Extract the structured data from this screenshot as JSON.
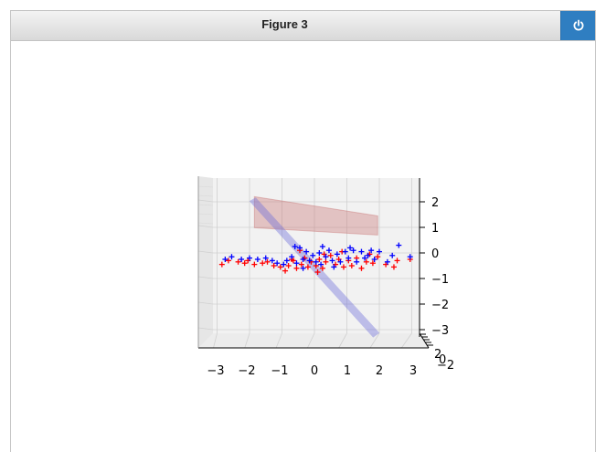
{
  "window": {
    "title": "Figure 3",
    "close_icon": "power-icon",
    "accent_color": "#2f7ec1"
  },
  "chart_data": {
    "type": "scatter",
    "projection": "3d",
    "title": "",
    "xlabel": "",
    "ylabel": "",
    "zlabel": "",
    "xlim": [
      -3.4,
      3.4
    ],
    "zlim": [
      -3.3,
      2.6
    ],
    "x_ticks": [
      "−3",
      "−2",
      "−1",
      "0",
      "1",
      "2",
      "3"
    ],
    "z_ticks": [
      "2",
      "1",
      "0",
      "−1",
      "−2",
      "−3"
    ],
    "y_ticks": [
      "2",
      "0",
      "−2"
    ],
    "grid": true,
    "colors": {
      "series_a": "#ff0000",
      "series_b": "#0000ff",
      "plane_a": "#c56b6b",
      "plane_b": "#6b6bd9",
      "pane": "#f2f2f2"
    },
    "surfaces": [
      {
        "color": "red",
        "x": [
          -1.85,
          1.95
        ],
        "z": [
          0.7,
          2.2
        ]
      },
      {
        "color": "blue",
        "x": [
          -1.95,
          1.95
        ],
        "z": [
          -3.2,
          2.1
        ]
      }
    ],
    "series": [
      {
        "marker": "+",
        "color": "#ff0000",
        "points": [
          [
            -2.85,
            -0.45
          ],
          [
            -2.65,
            -0.3
          ],
          [
            -2.35,
            -0.35
          ],
          [
            -2.15,
            -0.4
          ],
          [
            -2.05,
            -0.3
          ],
          [
            -1.85,
            -0.45
          ],
          [
            -1.6,
            -0.4
          ],
          [
            -1.45,
            -0.35
          ],
          [
            -1.25,
            -0.5
          ],
          [
            -1.05,
            -0.55
          ],
          [
            -0.9,
            -0.7
          ],
          [
            -0.8,
            -0.5
          ],
          [
            -0.65,
            -0.3
          ],
          [
            -0.55,
            -0.6
          ],
          [
            -0.4,
            -0.45
          ],
          [
            -0.3,
            -0.2
          ],
          [
            -0.2,
            -0.55
          ],
          [
            -0.1,
            -0.35
          ],
          [
            0.05,
            -0.5
          ],
          [
            0.15,
            -0.25
          ],
          [
            0.25,
            -0.6
          ],
          [
            0.35,
            -0.35
          ],
          [
            0.5,
            -0.1
          ],
          [
            0.65,
            -0.45
          ],
          [
            0.75,
            -0.25
          ],
          [
            0.9,
            -0.55
          ],
          [
            1.05,
            -0.3
          ],
          [
            1.15,
            -0.5
          ],
          [
            1.3,
            -0.2
          ],
          [
            1.45,
            -0.6
          ],
          [
            1.6,
            -0.35
          ],
          [
            1.8,
            -0.4
          ],
          [
            1.95,
            -0.15
          ],
          [
            2.2,
            -0.45
          ],
          [
            2.45,
            -0.55
          ],
          [
            2.55,
            -0.3
          ],
          [
            2.95,
            -0.25
          ],
          [
            -0.45,
            0.1
          ],
          [
            0.3,
            -0.05
          ],
          [
            0.85,
            0.05
          ],
          [
            -0.7,
            -0.25
          ],
          [
            1.7,
            -0.05
          ],
          [
            0.1,
            -0.75
          ]
        ]
      },
      {
        "marker": "+",
        "color": "#0000ff",
        "points": [
          [
            -2.75,
            -0.25
          ],
          [
            -2.55,
            -0.15
          ],
          [
            -2.25,
            -0.25
          ],
          [
            -2.0,
            -0.2
          ],
          [
            -1.75,
            -0.25
          ],
          [
            -1.5,
            -0.2
          ],
          [
            -1.3,
            -0.3
          ],
          [
            -1.15,
            -0.4
          ],
          [
            -0.95,
            -0.45
          ],
          [
            -0.85,
            -0.3
          ],
          [
            -0.7,
            -0.15
          ],
          [
            -0.55,
            -0.4
          ],
          [
            -0.45,
            0.2
          ],
          [
            -0.35,
            -0.25
          ],
          [
            -0.25,
            0.05
          ],
          [
            -0.15,
            -0.3
          ],
          [
            -0.05,
            -0.1
          ],
          [
            0.05,
            -0.35
          ],
          [
            0.15,
            0.0
          ],
          [
            0.2,
            -0.45
          ],
          [
            0.35,
            -0.15
          ],
          [
            0.45,
            0.1
          ],
          [
            0.55,
            -0.3
          ],
          [
            0.7,
            -0.05
          ],
          [
            0.8,
            -0.35
          ],
          [
            0.95,
            0.05
          ],
          [
            1.05,
            -0.2
          ],
          [
            1.2,
            0.1
          ],
          [
            1.3,
            -0.35
          ],
          [
            1.45,
            0.05
          ],
          [
            1.55,
            -0.2
          ],
          [
            1.75,
            0.1
          ],
          [
            1.85,
            -0.25
          ],
          [
            2.0,
            0.05
          ],
          [
            2.25,
            -0.35
          ],
          [
            2.6,
            0.3
          ],
          [
            2.95,
            -0.15
          ],
          [
            -0.6,
            0.25
          ],
          [
            0.25,
            0.25
          ],
          [
            1.1,
            0.2
          ],
          [
            -0.35,
            -0.6
          ],
          [
            0.6,
            -0.55
          ],
          [
            1.65,
            -0.1
          ],
          [
            2.4,
            -0.1
          ]
        ]
      }
    ]
  }
}
